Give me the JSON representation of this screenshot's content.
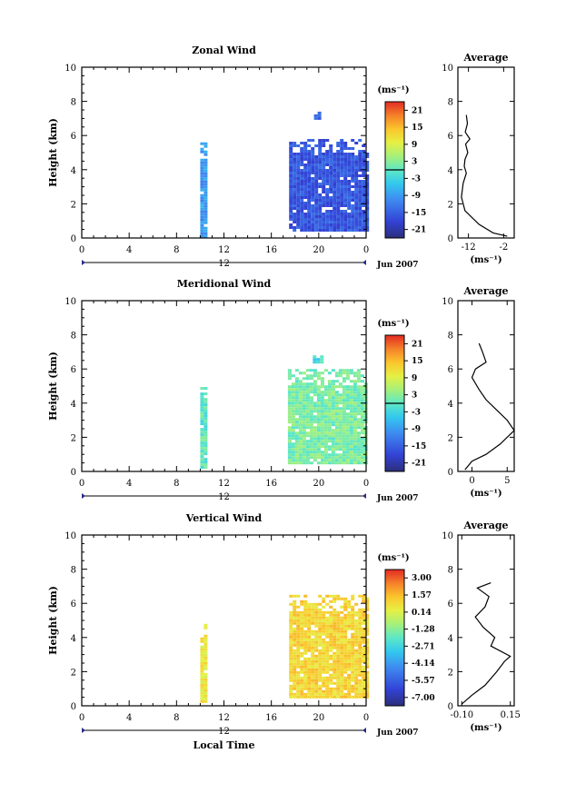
{
  "chart_data": [
    {
      "type": "heatmap",
      "title": "Zonal Wind",
      "ylabel": "Height (km)",
      "xlabel": "",
      "xlim": [
        0,
        24
      ],
      "ylim": [
        0,
        10
      ],
      "x_ticks": [
        "0",
        "4",
        "8",
        "12",
        "16",
        "20",
        "0"
      ],
      "x_tick_values": [
        0,
        4,
        8,
        12,
        16,
        20,
        24
      ],
      "y_ticks": [
        "0",
        "2",
        "4",
        "6",
        "8",
        "10"
      ],
      "date_marker_label": "12",
      "date_label": "Jun 2007",
      "colorbar": {
        "unit": "(ms⁻¹)",
        "ticks": [
          "21",
          "15",
          "9",
          "3",
          "-3",
          "-9",
          "-15",
          "-21"
        ],
        "tick_values": [
          21,
          15,
          9,
          3,
          -3,
          -9,
          -15,
          -21
        ],
        "range": [
          -24,
          24
        ],
        "marker_value": 0
      },
      "data_blocks": [
        {
          "x": [
            10.0,
            10.6
          ],
          "y": [
            0.1,
            5.6
          ],
          "value": -9
        },
        {
          "x": [
            17.5,
            24.0
          ],
          "y": [
            0.5,
            5.8
          ],
          "value": -16
        },
        {
          "x": [
            19.6,
            20.0
          ],
          "y": [
            7.0,
            7.4
          ],
          "value": -14
        }
      ],
      "average": {
        "title": "Average",
        "xlabel": "(ms⁻¹)",
        "x_ticks": [
          "-12",
          "-2"
        ],
        "x_tick_values": [
          -12,
          -2
        ],
        "xlim": [
          -15,
          1
        ],
        "y_ticks": [
          "0",
          "2",
          "4",
          "6",
          "8",
          "10"
        ],
        "profile": [
          [
            -1,
            0.1
          ],
          [
            -5,
            0.3
          ],
          [
            -9,
            0.8
          ],
          [
            -13,
            1.6
          ],
          [
            -14,
            2.4
          ],
          [
            -13.5,
            3.2
          ],
          [
            -12.6,
            3.8
          ],
          [
            -13.2,
            4.2
          ],
          [
            -13,
            4.6
          ],
          [
            -12.2,
            5.0
          ],
          [
            -12.8,
            5.5
          ],
          [
            -11.6,
            5.8
          ],
          [
            -12.9,
            6.2
          ],
          [
            -12.3,
            6.7
          ],
          [
            -12.6,
            7.2
          ]
        ]
      }
    },
    {
      "type": "heatmap",
      "title": "Meridional Wind",
      "ylabel": "Height (km)",
      "xlabel": "",
      "xlim": [
        0,
        24
      ],
      "ylim": [
        0,
        10
      ],
      "x_ticks": [
        "0",
        "4",
        "8",
        "12",
        "16",
        "20",
        "0"
      ],
      "x_tick_values": [
        0,
        4,
        8,
        12,
        16,
        20,
        24
      ],
      "y_ticks": [
        "0",
        "2",
        "4",
        "6",
        "8",
        "10"
      ],
      "date_marker_label": "12",
      "date_label": "Jun 2007",
      "colorbar": {
        "unit": "(ms⁻¹)",
        "ticks": [
          "21",
          "15",
          "9",
          "3",
          "-3",
          "-9",
          "-15",
          "-21"
        ],
        "tick_values": [
          21,
          15,
          9,
          3,
          -3,
          -9,
          -15,
          -21
        ],
        "range": [
          -24,
          24
        ],
        "marker_value": 0
      },
      "data_blocks": [
        {
          "x": [
            10.0,
            10.6
          ],
          "y": [
            0.3,
            5.1
          ],
          "value": 0
        },
        {
          "x": [
            17.4,
            24.0
          ],
          "y": [
            0.5,
            6.0
          ],
          "value": 2
        },
        {
          "x": [
            19.5,
            20.2
          ],
          "y": [
            6.4,
            6.8
          ],
          "value": -2
        }
      ],
      "average": {
        "title": "Average",
        "xlabel": "(ms⁻¹)",
        "x_ticks": [
          "0",
          "5"
        ],
        "x_tick_values": [
          0,
          5
        ],
        "xlim": [
          -2,
          6
        ],
        "y_ticks": [
          "0",
          "2",
          "4",
          "6",
          "8",
          "10"
        ],
        "profile": [
          [
            -1,
            0.1
          ],
          [
            0,
            0.6
          ],
          [
            2,
            1.0
          ],
          [
            4,
            1.6
          ],
          [
            6,
            2.4
          ],
          [
            5,
            3.0
          ],
          [
            3.5,
            3.6
          ],
          [
            2,
            4.2
          ],
          [
            1,
            4.8
          ],
          [
            0,
            5.5
          ],
          [
            0.5,
            6.0
          ],
          [
            2,
            6.4
          ],
          [
            1.5,
            7.0
          ],
          [
            1,
            7.5
          ]
        ]
      }
    },
    {
      "type": "heatmap",
      "title": "Vertical Wind",
      "ylabel": "Height (km)",
      "xlabel": "Local Time",
      "xlim": [
        0,
        24
      ],
      "ylim": [
        0,
        10
      ],
      "x_ticks": [
        "0",
        "4",
        "8",
        "12",
        "16",
        "20",
        "0"
      ],
      "x_tick_values": [
        0,
        4,
        8,
        12,
        16,
        20,
        24
      ],
      "y_ticks": [
        "0",
        "2",
        "4",
        "6",
        "8",
        "10"
      ],
      "date_marker_label": "12",
      "date_label": "Jun 2007",
      "colorbar": {
        "unit": "(ms⁻¹)",
        "ticks": [
          "3.00",
          "1.57",
          "0.14",
          "-1.28",
          "-2.71",
          "-4.14",
          "-5.57",
          "-7.00"
        ],
        "tick_values": [
          3.0,
          1.57,
          0.14,
          -1.28,
          -2.71,
          -4.14,
          -5.57,
          -7.0
        ],
        "range": [
          -7.7,
          3.7
        ]
      },
      "data_blocks": [
        {
          "x": [
            10.0,
            10.6
          ],
          "y": [
            0.2,
            4.8
          ],
          "value": 0.5
        },
        {
          "x": [
            17.5,
            24.0
          ],
          "y": [
            0.5,
            6.5
          ],
          "value": 1.0
        }
      ],
      "average": {
        "title": "Average",
        "xlabel": "(ms⁻¹)",
        "x_ticks": [
          "-0.10",
          "0.15"
        ],
        "x_tick_values": [
          -0.1,
          0.15
        ],
        "xlim": [
          -0.12,
          0.17
        ],
        "y_ticks": [
          "0",
          "2",
          "4",
          "6",
          "8",
          "10"
        ],
        "profile": [
          [
            -0.1,
            0.1
          ],
          [
            -0.05,
            0.6
          ],
          [
            0.02,
            1.2
          ],
          [
            0.08,
            2.0
          ],
          [
            0.12,
            2.6
          ],
          [
            0.15,
            2.9
          ],
          [
            0.05,
            3.5
          ],
          [
            0.07,
            4.0
          ],
          [
            0.01,
            4.6
          ],
          [
            -0.03,
            5.2
          ],
          [
            0.02,
            5.8
          ],
          [
            0.04,
            6.4
          ],
          [
            -0.02,
            6.9
          ],
          [
            0.05,
            7.2
          ]
        ]
      }
    }
  ]
}
